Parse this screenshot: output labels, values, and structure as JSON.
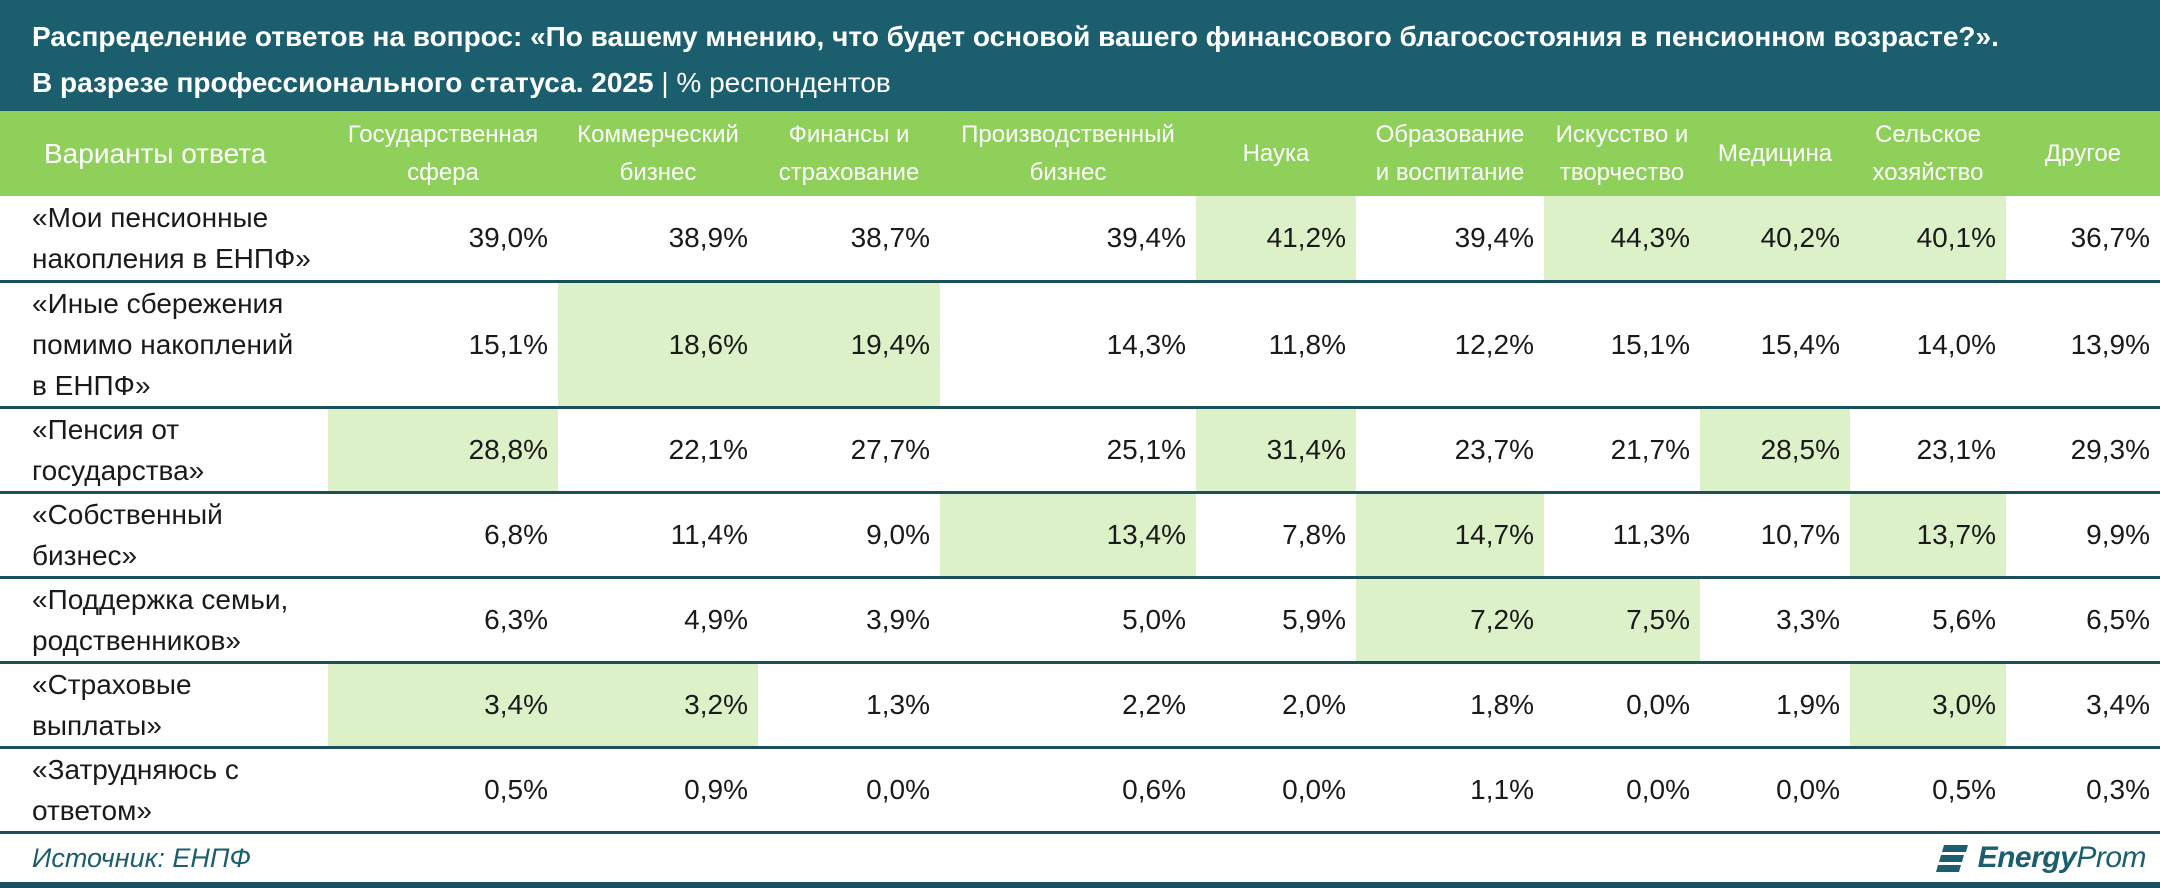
{
  "title": {
    "line1": "Распределение ответов на вопрос: «По вашему мнению, что будет основой вашего финансового благосостояния в пенсионном возрасте?».",
    "line2": "В разрезе профессионального статуса. 2025",
    "separator": "|",
    "unit": "% респондентов"
  },
  "chart_data": {
    "type": "table",
    "row_header": "Варианты ответа",
    "columns": [
      [
        "Государственная",
        "сфера"
      ],
      [
        "Коммерческий",
        "бизнес"
      ],
      [
        "Финансы и",
        "страхование"
      ],
      [
        "Производственный",
        "бизнес"
      ],
      [
        "Наука"
      ],
      [
        "Образование",
        "и воспитание"
      ],
      [
        "Искусство и",
        "творчество"
      ],
      [
        "Медицина"
      ],
      [
        "Сельское",
        "хозяйство"
      ],
      [
        "Другое"
      ]
    ],
    "rows": [
      {
        "label": [
          "«Мои пенсионные",
          "накопления в ЕНПФ»"
        ],
        "values": [
          "39,0%",
          "38,9%",
          "38,7%",
          "39,4%",
          "41,2%",
          "39,4%",
          "44,3%",
          "40,2%",
          "40,1%",
          "36,7%"
        ],
        "highlight": [
          false,
          false,
          false,
          false,
          true,
          false,
          true,
          true,
          true,
          false
        ]
      },
      {
        "label": [
          "«Иные сбережения",
          "помимо накоплений",
          "в ЕНПФ»"
        ],
        "values": [
          "15,1%",
          "18,6%",
          "19,4%",
          "14,3%",
          "11,8%",
          "12,2%",
          "15,1%",
          "15,4%",
          "14,0%",
          "13,9%"
        ],
        "highlight": [
          false,
          true,
          true,
          false,
          false,
          false,
          false,
          false,
          false,
          false
        ]
      },
      {
        "label": [
          "«Пенсия от",
          "государства»"
        ],
        "values": [
          "28,8%",
          "22,1%",
          "27,7%",
          "25,1%",
          "31,4%",
          "23,7%",
          "21,7%",
          "28,5%",
          "23,1%",
          "29,3%"
        ],
        "highlight": [
          true,
          false,
          false,
          false,
          true,
          false,
          false,
          true,
          false,
          false
        ]
      },
      {
        "label": [
          "«Собственный",
          "бизнес»"
        ],
        "values": [
          "6,8%",
          "11,4%",
          "9,0%",
          "13,4%",
          "7,8%",
          "14,7%",
          "11,3%",
          "10,7%",
          "13,7%",
          "9,9%"
        ],
        "highlight": [
          false,
          false,
          false,
          true,
          false,
          true,
          false,
          false,
          true,
          false
        ]
      },
      {
        "label": [
          "«Поддержка семьи,",
          "родственников»"
        ],
        "values": [
          "6,3%",
          "4,9%",
          "3,9%",
          "5,0%",
          "5,9%",
          "7,2%",
          "7,5%",
          "3,3%",
          "5,6%",
          "6,5%"
        ],
        "highlight": [
          false,
          false,
          false,
          false,
          false,
          true,
          true,
          false,
          false,
          false
        ]
      },
      {
        "label": [
          "«Страховые",
          "выплаты»"
        ],
        "values": [
          "3,4%",
          "3,2%",
          "1,3%",
          "2,2%",
          "2,0%",
          "1,8%",
          "0,0%",
          "1,9%",
          "3,0%",
          "3,4%"
        ],
        "highlight": [
          true,
          true,
          false,
          false,
          false,
          false,
          false,
          false,
          true,
          false
        ]
      },
      {
        "label": [
          "«Затрудняюсь с",
          "ответом»"
        ],
        "values": [
          "0,5%",
          "0,9%",
          "0,0%",
          "0,6%",
          "0,0%",
          "1,1%",
          "0,0%",
          "0,0%",
          "0,5%",
          "0,3%"
        ],
        "highlight": [
          false,
          false,
          false,
          false,
          false,
          false,
          false,
          false,
          false,
          false
        ]
      }
    ]
  },
  "footer": {
    "source": "Источник: ЕНПФ",
    "logo_bold": "Energy",
    "logo_thin": "Prom"
  },
  "colors": {
    "title_bg": "#1b5e6e",
    "header_bg": "#8fd05a",
    "highlight_bg": "#dcf1c8",
    "rule": "#1b4f5c"
  }
}
